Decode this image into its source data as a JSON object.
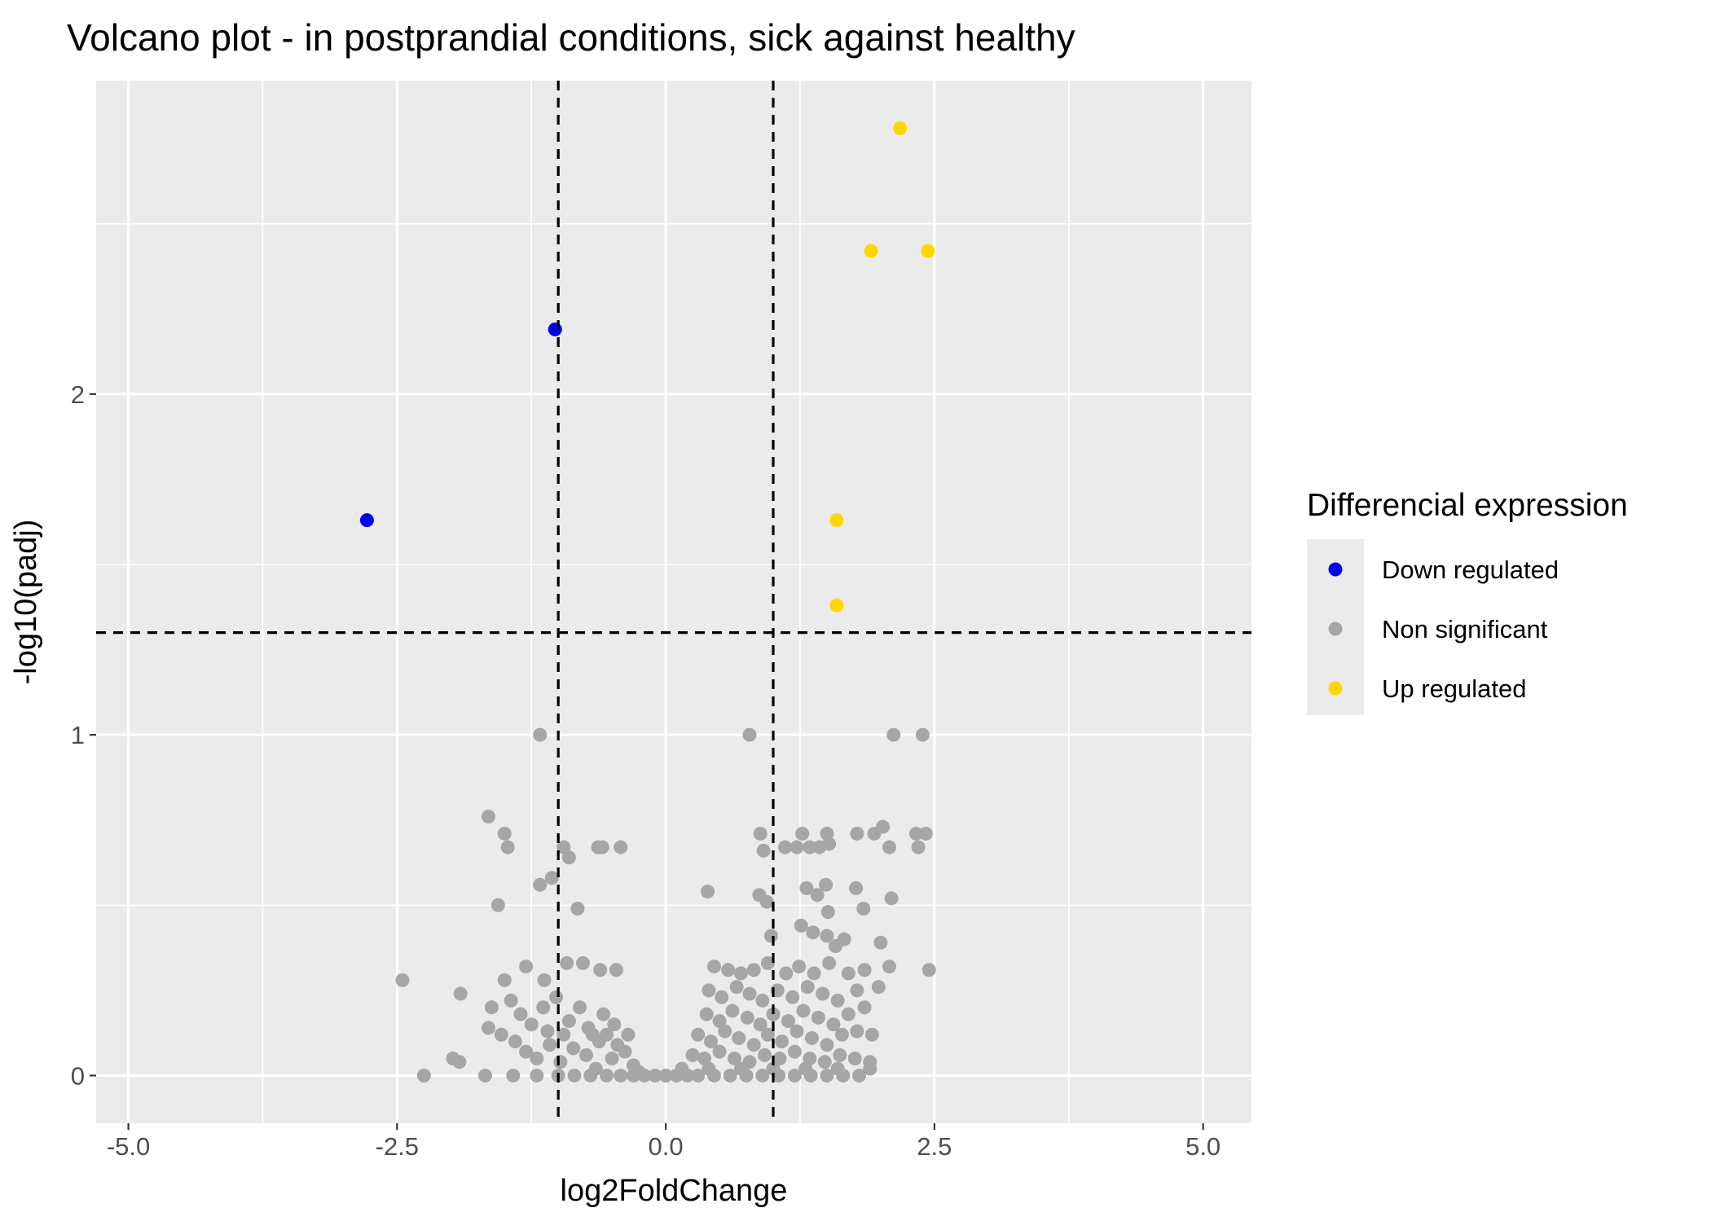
{
  "chart_data": {
    "type": "scatter",
    "title": "Volcano plot - in postprandial conditions, sick against healthy",
    "xlabel": "log2FoldChange",
    "ylabel": "-log10(padj)",
    "xlim": [
      -5.3,
      5.45
    ],
    "ylim": [
      -0.14,
      2.92
    ],
    "x_ticks": [
      -5.0,
      -2.5,
      0.0,
      2.5,
      5.0
    ],
    "x_tick_labels": [
      "-5.0",
      "-2.5",
      "0.0",
      "2.5",
      "5.0"
    ],
    "y_ticks": [
      0,
      1,
      2
    ],
    "y_tick_labels": [
      "0",
      "1",
      "2"
    ],
    "grid": true,
    "thresholds": {
      "x": [
        -1,
        1
      ],
      "y": 1.3
    },
    "legend": {
      "title": "Differencial expression",
      "position": "right",
      "entries": [
        {
          "label": "Down regulated",
          "color": "#0000ee"
        },
        {
          "label": "Non significant",
          "color": "#a6a6a6"
        },
        {
          "label": "Up regulated",
          "color": "#ffd700"
        }
      ]
    },
    "colors": {
      "down": "#0000ee",
      "ns": "#a6a6a6",
      "up": "#ffd700",
      "panel": "#ebebeb",
      "threshold_line": "#000000"
    },
    "series": [
      {
        "name": "Down regulated",
        "points": [
          [
            -1.03,
            2.19
          ],
          [
            -2.78,
            1.63
          ]
        ]
      },
      {
        "name": "Up regulated",
        "points": [
          [
            2.18,
            2.78
          ],
          [
            1.91,
            2.42
          ],
          [
            2.44,
            2.42
          ],
          [
            1.59,
            1.63
          ],
          [
            1.59,
            1.38
          ]
        ]
      },
      {
        "name": "Non significant",
        "points": [
          [
            -1.17,
            1.0
          ],
          [
            0.78,
            1.0
          ],
          [
            2.12,
            1.0
          ],
          [
            2.39,
            1.0
          ],
          [
            -1.65,
            0.76
          ],
          [
            -1.5,
            0.71
          ],
          [
            -1.47,
            0.67
          ],
          [
            -0.95,
            0.67
          ],
          [
            -0.9,
            0.64
          ],
          [
            -0.63,
            0.67
          ],
          [
            -0.59,
            0.67
          ],
          [
            -0.42,
            0.67
          ],
          [
            -1.17,
            0.56
          ],
          [
            -1.06,
            0.58
          ],
          [
            -1.56,
            0.5
          ],
          [
            -0.82,
            0.49
          ],
          [
            -2.45,
            0.28
          ],
          [
            -1.91,
            0.24
          ],
          [
            -1.5,
            0.28
          ],
          [
            -1.3,
            0.32
          ],
          [
            -1.13,
            0.28
          ],
          [
            -0.92,
            0.33
          ],
          [
            -0.77,
            0.33
          ],
          [
            -0.61,
            0.31
          ],
          [
            -0.46,
            0.31
          ],
          [
            -1.62,
            0.2
          ],
          [
            -1.44,
            0.22
          ],
          [
            -1.35,
            0.18
          ],
          [
            -1.25,
            0.15
          ],
          [
            -1.14,
            0.2
          ],
          [
            -1.02,
            0.23
          ],
          [
            -0.9,
            0.16
          ],
          [
            -0.8,
            0.2
          ],
          [
            -0.68,
            0.12
          ],
          [
            -0.58,
            0.18
          ],
          [
            -0.48,
            0.15
          ],
          [
            -1.65,
            0.14
          ],
          [
            -1.53,
            0.12
          ],
          [
            -1.4,
            0.1
          ],
          [
            -1.3,
            0.07
          ],
          [
            -1.2,
            0.05
          ],
          [
            -1.08,
            0.09
          ],
          [
            -0.98,
            0.04
          ],
          [
            -0.86,
            0.08
          ],
          [
            -0.74,
            0.06
          ],
          [
            -0.62,
            0.1
          ],
          [
            -0.5,
            0.05
          ],
          [
            -0.38,
            0.07
          ],
          [
            -0.3,
            0.03
          ],
          [
            -1.98,
            0.05
          ],
          [
            -1.92,
            0.04
          ],
          [
            -2.25,
            0.0
          ],
          [
            -1.68,
            0.0
          ],
          [
            -1.42,
            0.0
          ],
          [
            -1.2,
            0.0
          ],
          [
            -1.0,
            0.0
          ],
          [
            -0.85,
            0.0
          ],
          [
            -0.7,
            0.0
          ],
          [
            -0.55,
            0.0
          ],
          [
            -0.42,
            0.0
          ],
          [
            -0.3,
            0.0
          ],
          [
            -0.2,
            0.0
          ],
          [
            -0.1,
            0.0
          ],
          [
            0.0,
            0.0
          ],
          [
            -1.1,
            0.13
          ],
          [
            -0.95,
            0.12
          ],
          [
            -0.72,
            0.14
          ],
          [
            -0.55,
            0.12
          ],
          [
            -0.45,
            0.09
          ],
          [
            -0.35,
            0.12
          ],
          [
            -0.65,
            0.02
          ],
          [
            -0.25,
            0.01
          ],
          [
            0.1,
            0.0
          ],
          [
            0.2,
            0.0
          ],
          [
            0.3,
            0.0
          ],
          [
            0.45,
            0.0
          ],
          [
            0.6,
            0.0
          ],
          [
            0.75,
            0.0
          ],
          [
            0.9,
            0.0
          ],
          [
            1.05,
            0.0
          ],
          [
            1.2,
            0.0
          ],
          [
            1.35,
            0.0
          ],
          [
            1.5,
            0.0
          ],
          [
            1.65,
            0.0
          ],
          [
            1.8,
            0.0
          ],
          [
            0.88,
            0.71
          ],
          [
            0.91,
            0.66
          ],
          [
            1.11,
            0.67
          ],
          [
            1.22,
            0.67
          ],
          [
            1.27,
            0.71
          ],
          [
            1.34,
            0.67
          ],
          [
            1.43,
            0.67
          ],
          [
            1.5,
            0.71
          ],
          [
            1.78,
            0.71
          ],
          [
            1.94,
            0.71
          ],
          [
            2.02,
            0.73
          ],
          [
            2.08,
            0.67
          ],
          [
            2.33,
            0.71
          ],
          [
            2.42,
            0.71
          ],
          [
            2.35,
            0.67
          ],
          [
            1.52,
            0.68
          ],
          [
            0.39,
            0.54
          ],
          [
            0.87,
            0.53
          ],
          [
            0.94,
            0.51
          ],
          [
            1.31,
            0.55
          ],
          [
            1.41,
            0.53
          ],
          [
            1.49,
            0.56
          ],
          [
            1.77,
            0.55
          ],
          [
            2.1,
            0.52
          ],
          [
            1.84,
            0.49
          ],
          [
            1.51,
            0.48
          ],
          [
            0.98,
            0.41
          ],
          [
            1.26,
            0.44
          ],
          [
            1.37,
            0.42
          ],
          [
            1.5,
            0.41
          ],
          [
            1.66,
            0.4
          ],
          [
            2.0,
            0.39
          ],
          [
            1.58,
            0.38
          ],
          [
            0.45,
            0.32
          ],
          [
            0.58,
            0.31
          ],
          [
            0.7,
            0.3
          ],
          [
            0.82,
            0.31
          ],
          [
            0.95,
            0.33
          ],
          [
            1.12,
            0.3
          ],
          [
            1.24,
            0.32
          ],
          [
            1.38,
            0.3
          ],
          [
            1.52,
            0.33
          ],
          [
            1.7,
            0.3
          ],
          [
            1.85,
            0.31
          ],
          [
            2.08,
            0.32
          ],
          [
            2.45,
            0.31
          ],
          [
            0.4,
            0.25
          ],
          [
            0.52,
            0.23
          ],
          [
            0.66,
            0.26
          ],
          [
            0.78,
            0.24
          ],
          [
            0.9,
            0.22
          ],
          [
            1.04,
            0.25
          ],
          [
            1.18,
            0.23
          ],
          [
            1.32,
            0.26
          ],
          [
            1.46,
            0.24
          ],
          [
            1.6,
            0.22
          ],
          [
            1.78,
            0.25
          ],
          [
            1.98,
            0.26
          ],
          [
            0.38,
            0.18
          ],
          [
            0.5,
            0.16
          ],
          [
            0.62,
            0.19
          ],
          [
            0.76,
            0.17
          ],
          [
            0.88,
            0.15
          ],
          [
            1.0,
            0.18
          ],
          [
            1.14,
            0.16
          ],
          [
            1.28,
            0.19
          ],
          [
            1.42,
            0.17
          ],
          [
            1.56,
            0.15
          ],
          [
            1.7,
            0.18
          ],
          [
            1.85,
            0.2
          ],
          [
            0.3,
            0.12
          ],
          [
            0.42,
            0.1
          ],
          [
            0.55,
            0.13
          ],
          [
            0.68,
            0.11
          ],
          [
            0.82,
            0.09
          ],
          [
            0.95,
            0.12
          ],
          [
            1.08,
            0.1
          ],
          [
            1.22,
            0.13
          ],
          [
            1.36,
            0.11
          ],
          [
            1.5,
            0.09
          ],
          [
            1.64,
            0.12
          ],
          [
            1.78,
            0.13
          ],
          [
            1.92,
            0.12
          ],
          [
            0.25,
            0.06
          ],
          [
            0.36,
            0.05
          ],
          [
            0.5,
            0.07
          ],
          [
            0.64,
            0.05
          ],
          [
            0.78,
            0.04
          ],
          [
            0.92,
            0.06
          ],
          [
            1.06,
            0.05
          ],
          [
            1.2,
            0.07
          ],
          [
            1.34,
            0.05
          ],
          [
            1.48,
            0.04
          ],
          [
            1.62,
            0.06
          ],
          [
            1.76,
            0.05
          ],
          [
            1.9,
            0.04
          ],
          [
            0.15,
            0.02
          ],
          [
            0.4,
            0.02
          ],
          [
            0.7,
            0.02
          ],
          [
            1.0,
            0.02
          ],
          [
            1.3,
            0.02
          ],
          [
            1.6,
            0.02
          ],
          [
            1.9,
            0.02
          ]
        ]
      }
    ]
  }
}
